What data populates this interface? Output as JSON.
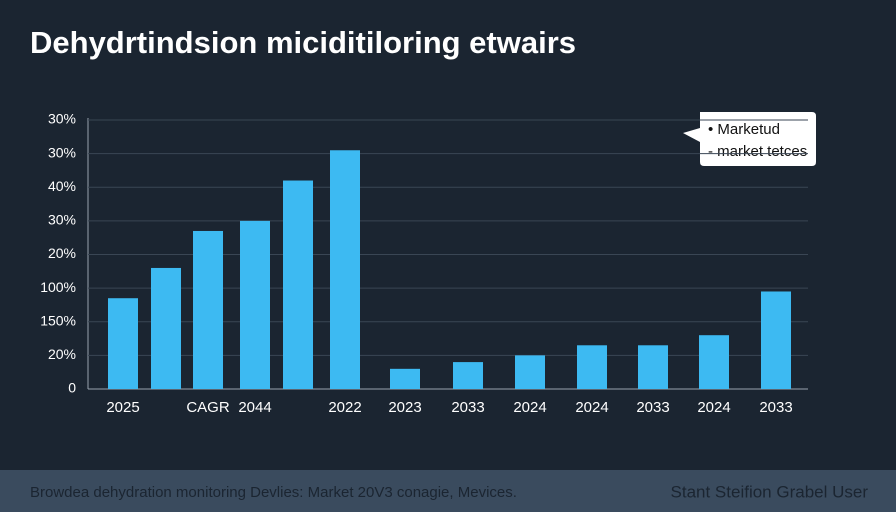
{
  "chart_data": {
    "type": "bar",
    "title": "Dehydrtindsion miciditiloring etwairs",
    "categories": [
      "2025",
      null,
      "CAGR",
      "2044",
      null,
      "2022",
      "2023",
      "2033",
      "2024",
      "2024",
      "2033",
      "2024",
      "2033"
    ],
    "values": [
      2.7,
      3.6,
      4.7,
      5.0,
      6.2,
      7.1,
      0.6,
      0.8,
      1.0,
      1.3,
      1.3,
      1.6,
      2.9
    ],
    "color": "#3dbaf2",
    "ylim": [
      0,
      8
    ],
    "yticks": [
      {
        "value": 0,
        "label": "0"
      },
      {
        "value": 1,
        "label": "20%"
      },
      {
        "value": 2,
        "label": "150%"
      },
      {
        "value": 3,
        "label": "100%"
      },
      {
        "value": 4,
        "label": "20%"
      },
      {
        "value": 5,
        "label": "30%"
      },
      {
        "value": 6,
        "label": "40%"
      },
      {
        "value": 7,
        "label": "30%"
      },
      {
        "value": 8,
        "label": "30%"
      }
    ],
    "grid": true,
    "legend_items": [
      "• Marketud",
      "- market tetces"
    ],
    "footer_left": "Browdea dehydration monitoring Devlies: Market 20V3 conagie, Mevices.",
    "footer_right": "Stant Steifion Grabel User"
  }
}
